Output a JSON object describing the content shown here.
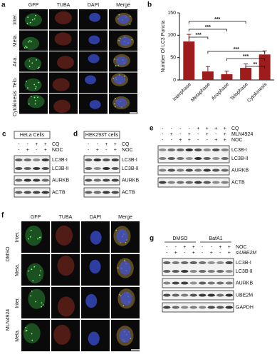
{
  "panel_a": {
    "label": "a",
    "columns": [
      "GFP",
      "TUBA",
      "DAPI",
      "Merge"
    ],
    "rows": [
      "Inter.",
      "Meta.",
      "Ana.",
      "Telo.",
      "Cytokinesis"
    ]
  },
  "chart_data": {
    "type": "bar",
    "label": "b",
    "y_label": "Number Of LC3 Puncta",
    "categories": [
      "Interphase",
      "Metaphase",
      "Anaphase",
      "Telophase",
      "Cytokinesis"
    ],
    "values": [
      86,
      19,
      13,
      27,
      57
    ],
    "errors": [
      16,
      11,
      7,
      9,
      8
    ],
    "color": "#9e1c1c",
    "ylim": [
      0,
      150
    ],
    "yticks": [
      0,
      50,
      100,
      150
    ],
    "significance": [
      {
        "text": "***",
        "between": [
          "Interphase",
          "Metaphase"
        ]
      },
      {
        "text": "***",
        "between": [
          "Interphase",
          "Anaphase"
        ]
      },
      {
        "text": "***",
        "between": [
          "Interphase",
          "Telophase"
        ]
      },
      {
        "text": "***",
        "between": [
          "Metaphase",
          "Cytokinesis"
        ]
      },
      {
        "text": "***",
        "between": [
          "Anaphase",
          "Cytokinesis"
        ]
      },
      {
        "text": "**",
        "between": [
          "Telophase",
          "Cytokinesis"
        ]
      }
    ]
  },
  "blots": [
    {
      "label": "c",
      "title": "HeLa Cells",
      "treatments": [
        {
          "name": "CQ",
          "signs": [
            "-",
            "-",
            "+",
            "+"
          ]
        },
        {
          "name": "NOC",
          "signs": [
            "-",
            "+",
            "-",
            "+"
          ]
        }
      ],
      "bands": [
        [
          "LC3B-I",
          "LC3B-II"
        ],
        [
          "AURKB"
        ],
        [
          "ACTB"
        ]
      ]
    },
    {
      "label": "d",
      "title": "HEK293T cells",
      "treatments": [
        {
          "name": "CQ",
          "signs": [
            "-",
            "-",
            "+",
            "+"
          ]
        },
        {
          "name": "NOC",
          "signs": [
            "-",
            "+",
            "-",
            "+"
          ]
        }
      ],
      "bands": [
        [
          "LC3B-I",
          "LC3B-II"
        ],
        [
          "AURKB"
        ],
        [
          "ACTB"
        ]
      ]
    },
    {
      "label": "e",
      "treatments": [
        {
          "name": "CQ",
          "signs": [
            "-",
            "-",
            "-",
            "-",
            "+",
            "+",
            "+",
            "+"
          ]
        },
        {
          "name": "MLN4924",
          "signs": [
            "-",
            "+",
            "-",
            "+",
            "-",
            "+",
            "-",
            "+"
          ]
        },
        {
          "name": "NOC",
          "signs": [
            "-",
            "-",
            "+",
            "+",
            "-",
            "-",
            "+",
            "+"
          ]
        }
      ],
      "bands": [
        [
          "LC3B-I",
          "LC3B-II"
        ],
        [
          "AURKB"
        ],
        [
          "ACTB"
        ]
      ]
    },
    {
      "label": "g",
      "groups": [
        "DMSO",
        "BafA1"
      ],
      "treatments": [
        {
          "name": "NOC",
          "signs": [
            "-",
            "-",
            "+",
            "+",
            "-",
            "-",
            "+",
            "+"
          ]
        },
        {
          "name": "siUBE2M",
          "signs": [
            "-",
            "+",
            "-",
            "+",
            "-",
            "+",
            "-",
            "+"
          ]
        }
      ],
      "bands": [
        [
          "LC3B-I",
          "LC3B-II"
        ],
        [
          "AURKB"
        ],
        [
          "UBE2M"
        ],
        [
          "GAPDH"
        ]
      ]
    }
  ],
  "panel_f": {
    "label": "f",
    "columns": [
      "GFP",
      "TUBA",
      "DAPI",
      "Merge"
    ],
    "groups": [
      {
        "name": "DMSO",
        "rows": [
          "Inter.",
          "Meta."
        ]
      },
      {
        "name": "MLN4924",
        "rows": [
          "Inter.",
          "Meta."
        ]
      }
    ]
  }
}
